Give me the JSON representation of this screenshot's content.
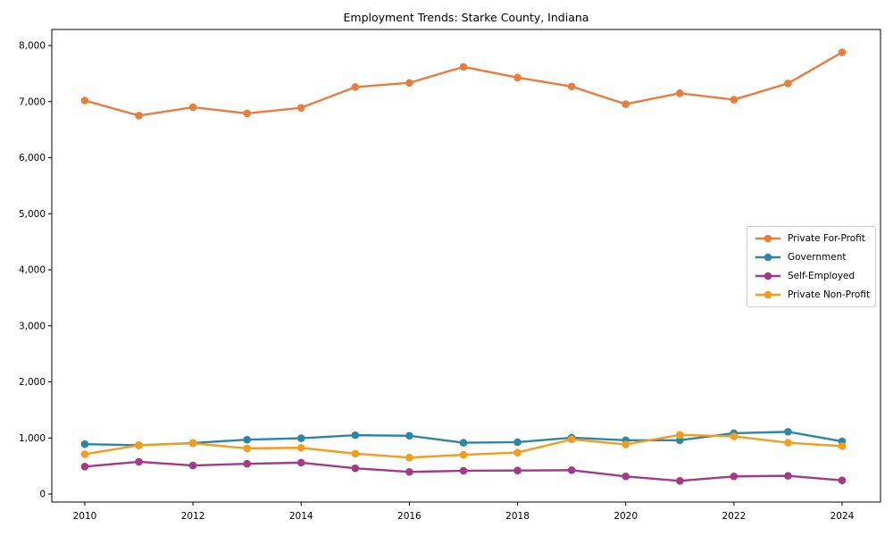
{
  "figure": {
    "title": "Employment Trends: Starke County, Indiana"
  },
  "chart_data": {
    "type": "line",
    "title": "Employment Trends: Starke County, Indiana",
    "xlabel": "",
    "ylabel": "",
    "x": [
      2010,
      2011,
      2012,
      2013,
      2014,
      2015,
      2016,
      2017,
      2018,
      2019,
      2020,
      2021,
      2022,
      2023,
      2024
    ],
    "x_ticks": [
      2010,
      2012,
      2014,
      2016,
      2018,
      2020,
      2022,
      2024
    ],
    "x_tick_labels": [
      "2010",
      "2012",
      "2014",
      "2016",
      "2018",
      "2020",
      "2022",
      "2024"
    ],
    "y_ticks": [
      0,
      1000,
      2000,
      3000,
      4000,
      5000,
      6000,
      7000,
      8000
    ],
    "y_tick_labels": [
      "0",
      "1,000",
      "2,000",
      "3,000",
      "4,000",
      "5,000",
      "6,000",
      "7,000",
      "8,000"
    ],
    "xlim": [
      2009.39,
      2024.71
    ],
    "ylim": [
      -143,
      8287
    ],
    "grid": false,
    "legend_position": "center right",
    "marker": "circle",
    "series": [
      {
        "name": "Private For-Profit",
        "color": "#e87d3e",
        "values": [
          7020,
          6750,
          6900,
          6790,
          6890,
          7260,
          7335,
          7620,
          7430,
          7270,
          6955,
          7150,
          7035,
          7325,
          7880
        ]
      },
      {
        "name": "Government",
        "color": "#2e86a5",
        "values": [
          890,
          870,
          910,
          970,
          995,
          1050,
          1040,
          915,
          925,
          1005,
          960,
          960,
          1085,
          1110,
          940
        ]
      },
      {
        "name": "Self-Employed",
        "color": "#a23b84",
        "values": [
          490,
          575,
          510,
          540,
          560,
          460,
          395,
          415,
          420,
          425,
          315,
          235,
          315,
          325,
          245
        ]
      },
      {
        "name": "Private Non-Profit",
        "color": "#f39c1d",
        "values": [
          710,
          870,
          905,
          815,
          825,
          720,
          650,
          700,
          740,
          975,
          885,
          1055,
          1030,
          915,
          855
        ]
      }
    ]
  }
}
